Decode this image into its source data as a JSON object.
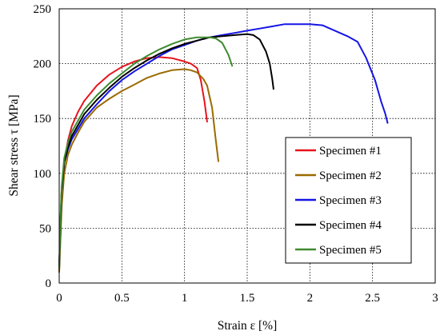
{
  "chart_data": {
    "type": "line",
    "title": "",
    "xlabel": "Strain ε [%]",
    "ylabel": "Shear stress τ [MPa]",
    "xlim": [
      0,
      3
    ],
    "ylim": [
      0,
      250
    ],
    "xticks": [
      0,
      0.5,
      1,
      1.5,
      2,
      2.5,
      3
    ],
    "xtick_labels": [
      "0",
      "0.5",
      "1",
      "1.5",
      "2",
      "2.5",
      "3"
    ],
    "yticks": [
      0,
      50,
      100,
      150,
      200,
      250
    ],
    "ytick_labels": [
      "0",
      "50",
      "100",
      "150",
      "200",
      "250"
    ],
    "grid": true,
    "legend_position": "lower-right",
    "series": [
      {
        "name": "Specimen #1",
        "color": "#e8141c",
        "x": [
          0,
          0.01,
          0.02,
          0.04,
          0.07,
          0.1,
          0.15,
          0.2,
          0.3,
          0.4,
          0.5,
          0.6,
          0.7,
          0.8,
          0.9,
          1.0,
          1.05,
          1.1,
          1.13,
          1.16,
          1.18
        ],
        "y": [
          12,
          50,
          80,
          110,
          130,
          143,
          156,
          166,
          180,
          190,
          197,
          202,
          205,
          206,
          205,
          202,
          200,
          196,
          185,
          165,
          147
        ]
      },
      {
        "name": "Specimen #2",
        "color": "#9a6b00",
        "x": [
          0,
          0.01,
          0.02,
          0.04,
          0.07,
          0.1,
          0.15,
          0.2,
          0.3,
          0.4,
          0.5,
          0.6,
          0.7,
          0.8,
          0.9,
          1.0,
          1.05,
          1.1,
          1.15,
          1.18,
          1.22,
          1.25,
          1.27
        ],
        "y": [
          10,
          40,
          70,
          100,
          117,
          126,
          137,
          147,
          160,
          168,
          175,
          181,
          187,
          191,
          194,
          195,
          194,
          192,
          186,
          180,
          160,
          130,
          111
        ]
      },
      {
        "name": "Specimen #3",
        "color": "#1515e6",
        "x": [
          0,
          0.01,
          0.02,
          0.04,
          0.07,
          0.1,
          0.2,
          0.3,
          0.4,
          0.5,
          0.6,
          0.7,
          0.8,
          0.9,
          1.0,
          1.1,
          1.2,
          1.3,
          1.4,
          1.5,
          1.6,
          1.7,
          1.8,
          1.9,
          2.0,
          2.1,
          2.2,
          2.3,
          2.38,
          2.45,
          2.52,
          2.57,
          2.6,
          2.62
        ],
        "y": [
          15,
          55,
          85,
          110,
          122,
          131,
          150,
          163,
          175,
          185,
          193,
          200,
          207,
          213,
          217,
          221,
          224,
          226,
          228,
          230,
          232,
          234,
          236,
          236,
          236,
          235,
          230,
          225,
          220,
          205,
          185,
          165,
          155,
          146
        ]
      },
      {
        "name": "Specimen #4",
        "color": "#000000",
        "x": [
          0,
          0.01,
          0.02,
          0.04,
          0.07,
          0.1,
          0.2,
          0.3,
          0.4,
          0.5,
          0.6,
          0.7,
          0.8,
          0.9,
          1.0,
          1.1,
          1.2,
          1.3,
          1.4,
          1.5,
          1.55,
          1.6,
          1.65,
          1.68,
          1.7,
          1.71
        ],
        "y": [
          14,
          55,
          85,
          110,
          124,
          134,
          154,
          167,
          178,
          188,
          196,
          203,
          209,
          214,
          218,
          221,
          224,
          225,
          226,
          227,
          226,
          222,
          211,
          200,
          186,
          177
        ]
      },
      {
        "name": "Specimen #5",
        "color": "#3f8a2f",
        "x": [
          0,
          0.01,
          0.02,
          0.04,
          0.07,
          0.1,
          0.2,
          0.3,
          0.4,
          0.5,
          0.6,
          0.7,
          0.8,
          0.9,
          1.0,
          1.05,
          1.1,
          1.15,
          1.2,
          1.25,
          1.3,
          1.35,
          1.38
        ],
        "y": [
          14,
          60,
          88,
          114,
          128,
          138,
          158,
          171,
          182,
          191,
          200,
          207,
          213,
          218,
          222,
          223,
          224,
          224,
          224,
          223,
          219,
          208,
          198
        ]
      }
    ]
  }
}
